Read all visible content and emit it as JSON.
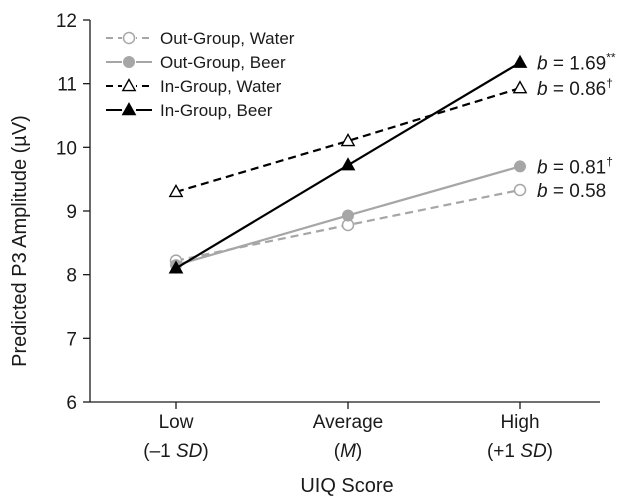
{
  "chart_data": {
    "type": "line",
    "title": "",
    "xlabel": "UIQ Score",
    "ylabel": "Predicted P3 Amplitude (µV)",
    "categories": [
      {
        "line1": "Low",
        "line2_prefix": "(–1 ",
        "line2_italic": "SD",
        "line2_suffix": ")"
      },
      {
        "line1": "Average",
        "line2_prefix": "(",
        "line2_italic": "M",
        "line2_suffix": ")"
      },
      {
        "line1": "High",
        "line2_prefix": "(+1 ",
        "line2_italic": "SD",
        "line2_suffix": ")"
      }
    ],
    "ylim": [
      6,
      12
    ],
    "yticks": [
      "6",
      "7",
      "8",
      "9",
      "10",
      "11",
      "12"
    ],
    "grid": false,
    "legend_position": "top-left",
    "series": [
      {
        "name": "Out-Group, Water",
        "values": [
          8.22,
          8.78,
          9.33
        ],
        "color": "#a6a6a6",
        "dashed": true,
        "marker": "circle-open",
        "slope_b": "b",
        "slope_value": " = 0.58",
        "slope_sup": ""
      },
      {
        "name": "Out-Group, Beer",
        "values": [
          8.15,
          8.93,
          9.7
        ],
        "color": "#a6a6a6",
        "dashed": false,
        "marker": "circle-filled",
        "slope_b": "b",
        "slope_value": " = 0.81",
        "slope_sup": "†"
      },
      {
        "name": "In-Group, Water",
        "values": [
          9.3,
          10.1,
          10.93
        ],
        "color": "#000000",
        "dashed": true,
        "marker": "triangle-open",
        "slope_b": "b",
        "slope_value": " = 0.86",
        "slope_sup": "†"
      },
      {
        "name": "In-Group, Beer",
        "values": [
          8.1,
          9.72,
          11.33
        ],
        "color": "#000000",
        "dashed": false,
        "marker": "triangle-filled",
        "slope_b": "b",
        "slope_value": " = 1.69",
        "slope_sup": "**"
      }
    ]
  }
}
